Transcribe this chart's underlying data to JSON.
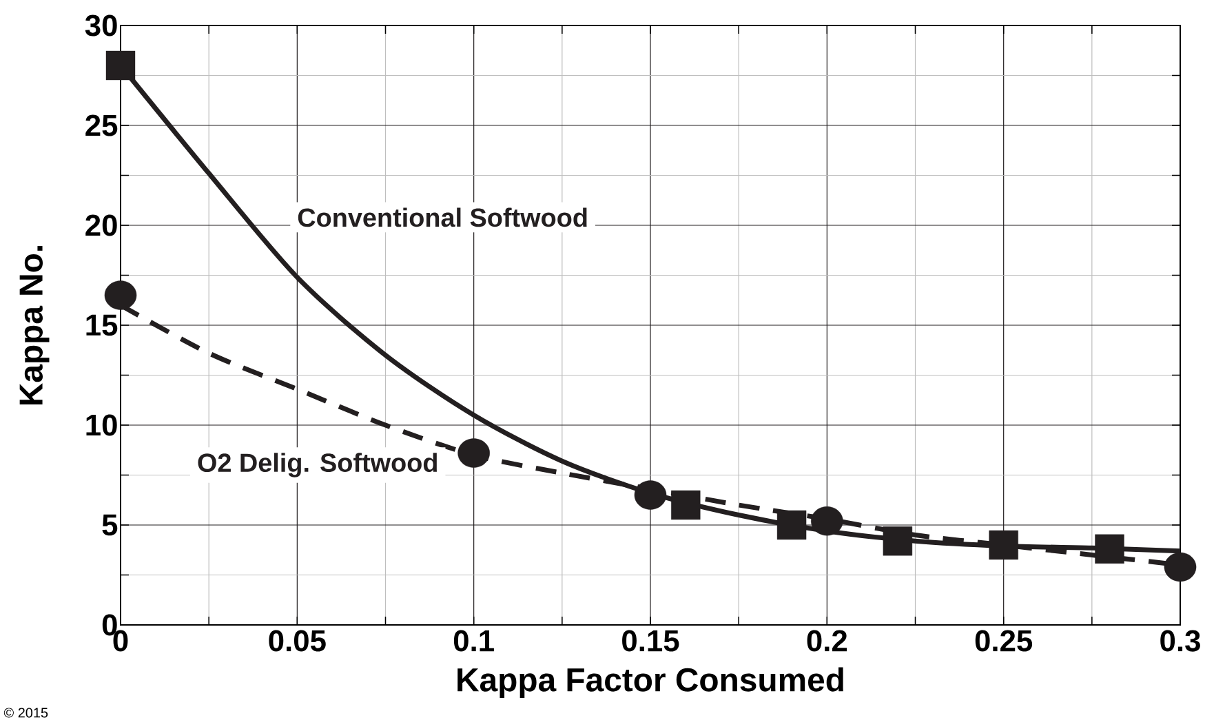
{
  "chart_data": {
    "type": "scatter",
    "xlabel": "Kappa Factor Consumed",
    "ylabel": "Kappa No.",
    "xlim": [
      0,
      0.3
    ],
    "ylim": [
      0,
      30
    ],
    "xticks": [
      0,
      0.05,
      0.1,
      0.15,
      0.2,
      0.25,
      0.3
    ],
    "yticks": [
      0,
      5,
      10,
      15,
      20,
      25,
      30
    ],
    "grid": true,
    "series": [
      {
        "marker": "square",
        "color": "#231f20",
        "x": [
          0,
          0.16,
          0.19,
          0.22,
          0.25,
          0.28
        ],
        "values": [
          28,
          6.0,
          5.0,
          4.2,
          4.0,
          3.8
        ]
      },
      {
        "name": "O2 Delig. Softwood",
        "marker": "circle",
        "color": "#231f20",
        "x": [
          0,
          0.1,
          0.15,
          0.2,
          0.3
        ],
        "values": [
          16.5,
          8.6,
          6.5,
          5.2,
          2.9
        ]
      },
      {
        "name": "Conventional Softwood",
        "type": "line",
        "line_style": "solid",
        "color": "#231f20",
        "x": [
          0,
          0.025,
          0.05,
          0.075,
          0.1,
          0.125,
          0.15,
          0.175,
          0.2,
          0.225,
          0.25,
          0.275,
          0.3
        ],
        "values": [
          28,
          22.6,
          17.4,
          13.5,
          10.5,
          8.2,
          6.6,
          5.5,
          4.7,
          4.2,
          3.95,
          3.85,
          3.7
        ]
      },
      {
        "type": "line",
        "line_style": "dashed",
        "color": "#231f20",
        "x": [
          0,
          0.025,
          0.05,
          0.075,
          0.1,
          0.125,
          0.15,
          0.175,
          0.2,
          0.225,
          0.25,
          0.275,
          0.3
        ],
        "values": [
          16,
          13.6,
          11.8,
          10.0,
          8.5,
          7.6,
          6.8,
          6.0,
          5.3,
          4.5,
          4.0,
          3.5,
          3.0
        ]
      }
    ],
    "annotations": [
      "© 2015"
    ]
  }
}
